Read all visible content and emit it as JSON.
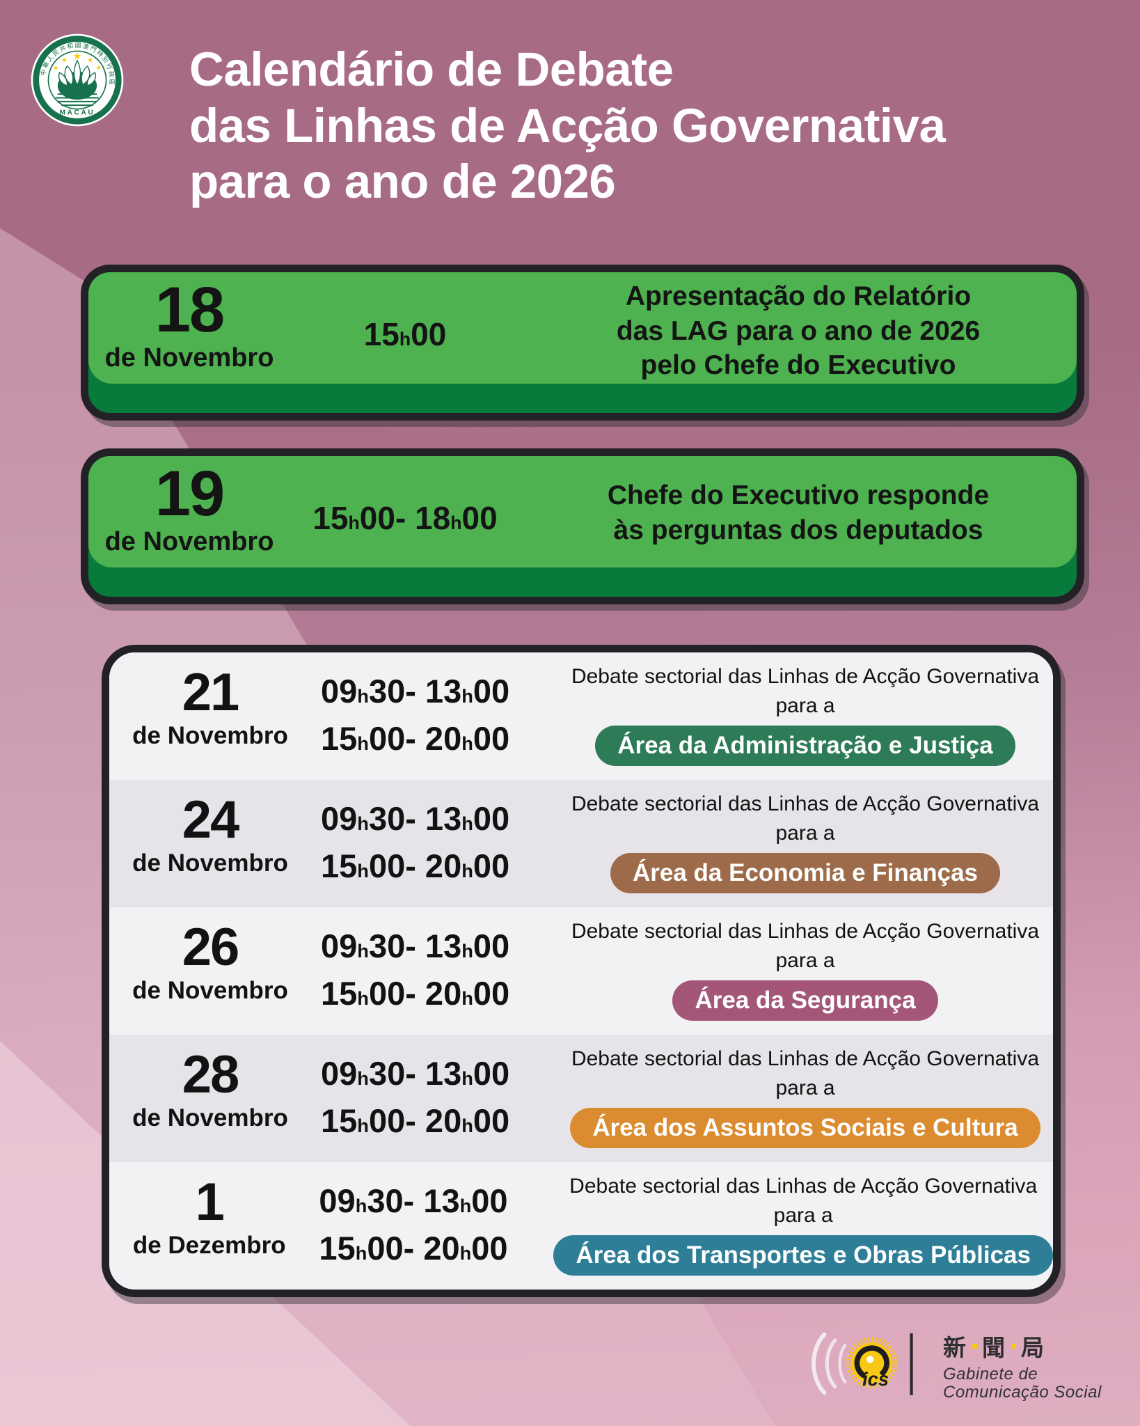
{
  "poster": {
    "title_lines": [
      "Calendário de Debate",
      "das Linhas de Acção Governativa",
      "para o ano de 2026"
    ]
  },
  "emblem": {
    "ring_text": "中華人民共和國澳門特別行政區",
    "bottom_text": "MACAU"
  },
  "highlight_cards": [
    {
      "day": "18",
      "month": "de Novembro",
      "time": "15h00",
      "description_lines": [
        "Apresentação do Relatório",
        "das LAG para o ano de 2026",
        "pelo Chefe do Executivo"
      ]
    },
    {
      "day": "19",
      "month": "de Novembro",
      "time": "15h00- 18h00",
      "description_lines": [
        "Chefe do Executivo responde",
        "às perguntas dos deputados"
      ]
    }
  ],
  "sessions": {
    "rows": [
      {
        "day": "21",
        "month": "de Novembro",
        "time1": "09h30- 13h00",
        "time2": "15h00- 20h00",
        "desc_line1": "Debate sectorial das Linhas de Acção Governativa",
        "desc_line2": "para a",
        "pill_label": "Área da Administração e Justiça",
        "pill_color": "#2D7B57"
      },
      {
        "day": "24",
        "month": "de Novembro",
        "time1": "09h30- 13h00",
        "time2": "15h00- 20h00",
        "desc_line1": "Debate sectorial das Linhas de Acção Governativa",
        "desc_line2": "para a",
        "pill_label": "Área da Economia e Finanças",
        "pill_color": "#9D6B49"
      },
      {
        "day": "26",
        "month": "de Novembro",
        "time1": "09h30- 13h00",
        "time2": "15h00- 20h00",
        "desc_line1": "Debate sectorial das Linhas de Acção Governativa",
        "desc_line2": "para a",
        "pill_label": "Área da Segurança",
        "pill_color": "#A35678"
      },
      {
        "day": "28",
        "month": "de Novembro",
        "time1": "09h30- 13h00",
        "time2": "15h00- 20h00",
        "desc_line1": "Debate sectorial das Linhas de Acção Governativa",
        "desc_line2": "para a",
        "pill_label": "Área dos Assuntos Sociais e Cultura",
        "pill_color": "#DC8C30"
      },
      {
        "day": "1",
        "month": "de Dezembro",
        "time1": "09h30- 13h00",
        "time2": "15h00- 20h00",
        "desc_line1": "Debate sectorial das Linhas de Acção Governativa",
        "desc_line2": "para a",
        "pill_label": "Área dos Transportes e Obras Públicas",
        "pill_color": "#2E7E97"
      }
    ]
  },
  "footer": {
    "logo_letters": "ics",
    "zh_chars": [
      "新",
      "聞",
      "局"
    ],
    "pt_lines": [
      "Gabinete de",
      "Comunicação Social"
    ]
  },
  "colors": {
    "bg_top": "#A76B85",
    "bg_bottom": "#DCA6BB",
    "card_green": "#4DB24F",
    "card_green_dark": "#077B3B",
    "card_border": "#222126",
    "accent_yellow": "#F9C715",
    "row_light": "#F2F1F4",
    "row_dark": "#E6E4E8"
  }
}
